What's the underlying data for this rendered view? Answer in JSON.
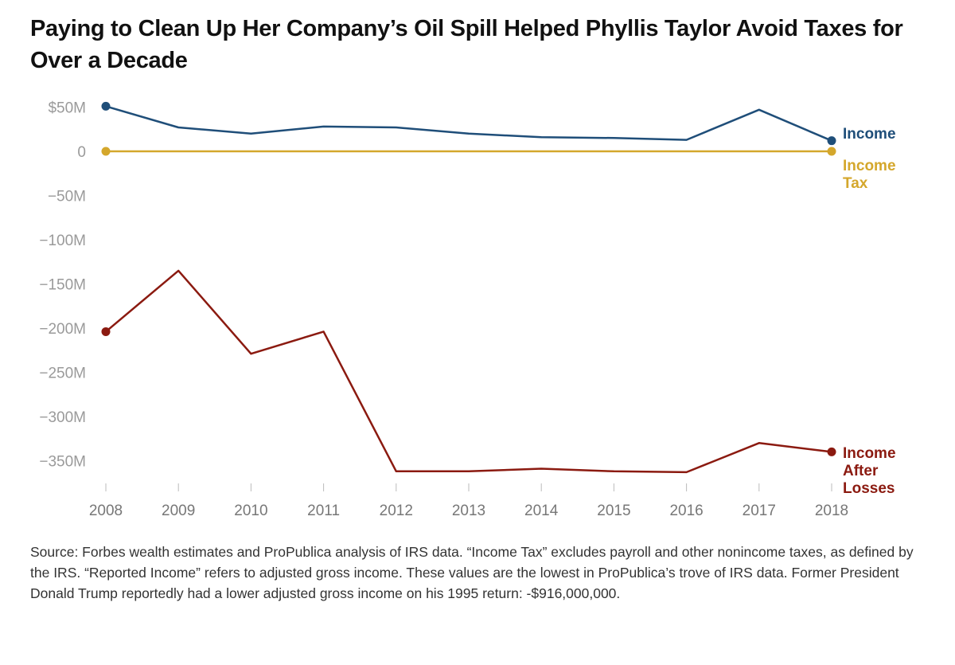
{
  "title": "Paying to Clean Up Her Company’s Oil Spill Helped Phyllis Taylor Avoid Taxes for Over a Decade",
  "source": "Source: Forbes wealth estimates and ProPublica analysis of IRS data. “Income Tax” excludes payroll and other nonincome taxes, as defined by the IRS. “Reported Income” refers to adjusted gross income. These values are the lowest in ProPublica’s trove of IRS data. Former President Donald Trump reportedly had a lower adjusted gross income on his 1995 return: -$916,000,000.",
  "chart_data": {
    "type": "line",
    "x": [
      "2008",
      "2009",
      "2010",
      "2011",
      "2012",
      "2013",
      "2014",
      "2015",
      "2016",
      "2017",
      "2018"
    ],
    "ylim": [
      -385,
      52
    ],
    "yticks": [
      {
        "value": 50,
        "label": "$50M"
      },
      {
        "value": 0,
        "label": "0"
      },
      {
        "value": -50,
        "label": "−50M"
      },
      {
        "value": -100,
        "label": "−100M"
      },
      {
        "value": -150,
        "label": "−150M"
      },
      {
        "value": -200,
        "label": "−200M"
      },
      {
        "value": -250,
        "label": "−250M"
      },
      {
        "value": -300,
        "label": "−300M"
      },
      {
        "value": -350,
        "label": "−350M"
      }
    ],
    "grid": false,
    "series": [
      {
        "name": "Income",
        "label_lines": [
          "Income"
        ],
        "color": "#1f4e79",
        "values": [
          51,
          27,
          20,
          28,
          27,
          20,
          16,
          15,
          13,
          47,
          12
        ]
      },
      {
        "name": "Income Tax",
        "label_lines": [
          "Income",
          "Tax"
        ],
        "color": "#d4a72c",
        "values": [
          0,
          0,
          0,
          0,
          0,
          0,
          0,
          0,
          0,
          0,
          0
        ]
      },
      {
        "name": "Income After Losses",
        "label_lines": [
          "Income",
          "After",
          "Losses"
        ],
        "color": "#8b1a10",
        "values": [
          -204,
          -135,
          -229,
          -204,
          -362,
          -362,
          -359,
          -362,
          -363,
          -330,
          -340
        ]
      }
    ]
  }
}
